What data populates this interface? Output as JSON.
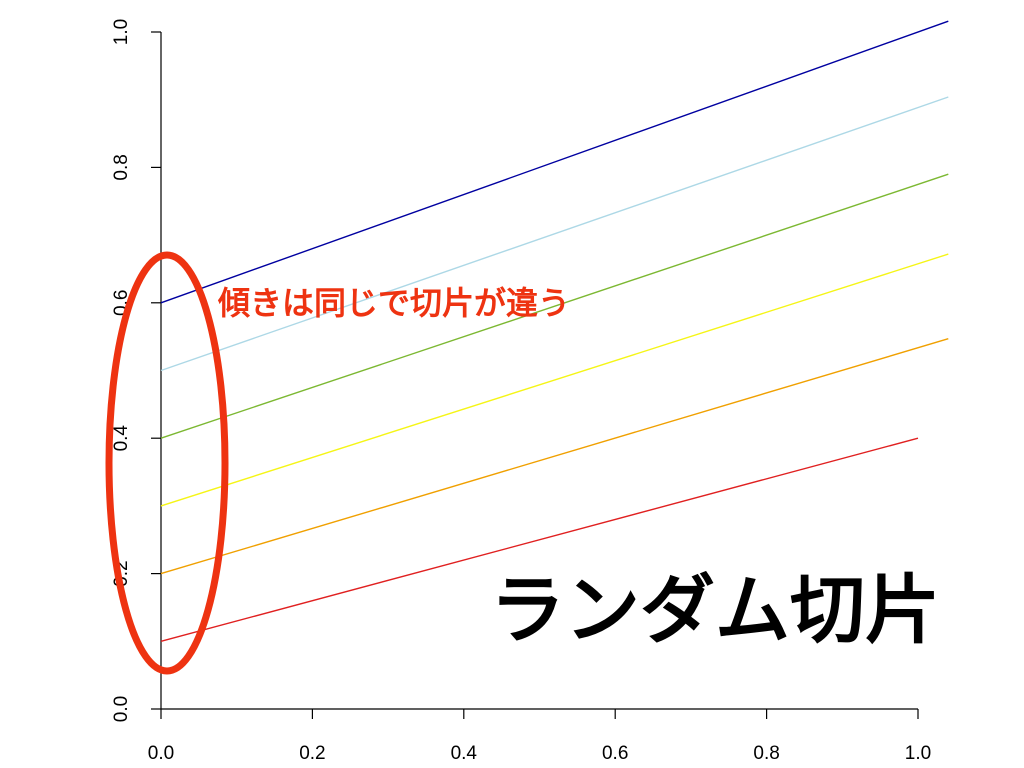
{
  "chart_data": {
    "type": "line",
    "title": "",
    "xlabel": "",
    "ylabel": "",
    "xlim": [
      0.0,
      1.0
    ],
    "ylim": [
      0.0,
      1.0
    ],
    "x_ticks": [
      "0.0",
      "0.2",
      "0.4",
      "0.6",
      "0.8",
      "1.0"
    ],
    "y_ticks": [
      "0.0",
      "0.2",
      "0.4",
      "0.6",
      "0.8",
      "1.0"
    ],
    "grid": false,
    "legend": "none",
    "series": [
      {
        "color": "#0000a0",
        "x": [
          0.0,
          1.04
        ],
        "y": [
          0.6,
          1.016
        ]
      },
      {
        "color": "#add8e6",
        "x": [
          0.0,
          1.04
        ],
        "y": [
          0.5,
          0.904
        ]
      },
      {
        "color": "#7cb832",
        "x": [
          0.0,
          1.04
        ],
        "y": [
          0.4,
          0.79
        ]
      },
      {
        "color": "#f5f516",
        "x": [
          0.0,
          1.04
        ],
        "y": [
          0.3,
          0.672
        ]
      },
      {
        "color": "#f0a000",
        "x": [
          0.0,
          1.04
        ],
        "y": [
          0.2,
          0.547
        ]
      },
      {
        "color": "#e02020",
        "x": [
          0.0,
          1.0
        ],
        "y": [
          0.1,
          0.4
        ]
      }
    ]
  },
  "annotations": {
    "subtitle": "傾きは同じで切片が違う",
    "subtitle_color": "#ee3311",
    "main_label": "ランダム切片",
    "main_label_color": "#000000",
    "ellipse_color": "#ee3311"
  }
}
